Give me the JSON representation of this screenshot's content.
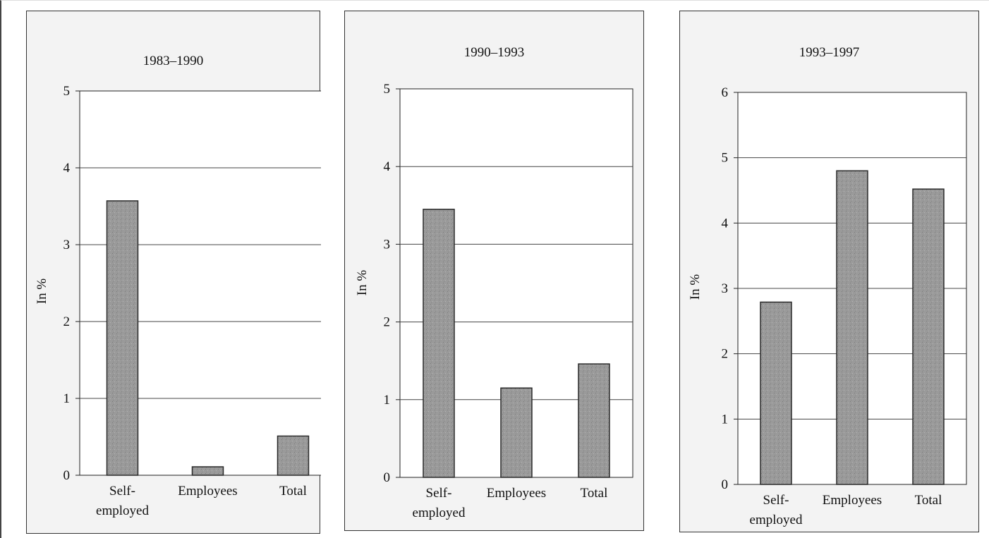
{
  "chart_data": [
    {
      "type": "bar",
      "title": "1983–1990",
      "ylabel": "In %",
      "categories": [
        "Self-employed",
        "Employees",
        "Total"
      ],
      "category_lines": [
        [
          "Self-",
          "employed"
        ],
        [
          "Employees"
        ],
        [
          "Total"
        ]
      ],
      "values": [
        3.57,
        0.11,
        0.51
      ],
      "ylim": [
        0,
        5
      ],
      "yticks": [
        0,
        1,
        2,
        3,
        4,
        5
      ],
      "grid": true,
      "bar_color": "#9a9a9a"
    },
    {
      "type": "bar",
      "title": "1990–1993",
      "ylabel": "In %",
      "categories": [
        "Self-employed",
        "Employees",
        "Total"
      ],
      "category_lines": [
        [
          "Self-",
          "employed"
        ],
        [
          "Employees"
        ],
        [
          "Total"
        ]
      ],
      "values": [
        3.45,
        1.15,
        1.46
      ],
      "ylim": [
        0,
        5
      ],
      "yticks": [
        0,
        1,
        2,
        3,
        4,
        5
      ],
      "grid": true,
      "bar_color": "#9a9a9a"
    },
    {
      "type": "bar",
      "title": "1993–1997",
      "ylabel": "In %",
      "categories": [
        "Self-employed",
        "Employees",
        "Total"
      ],
      "category_lines": [
        [
          "Self-",
          "employed"
        ],
        [
          "Employees"
        ],
        [
          "Total"
        ]
      ],
      "values": [
        2.79,
        4.8,
        4.52
      ],
      "ylim": [
        0,
        6
      ],
      "yticks": [
        0,
        1,
        2,
        3,
        4,
        5,
        6
      ],
      "grid": true,
      "bar_color": "#9a9a9a"
    }
  ]
}
